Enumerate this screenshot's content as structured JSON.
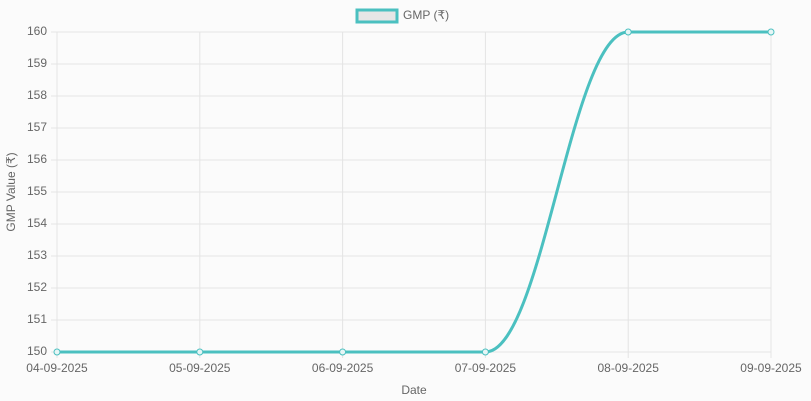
{
  "chart_data": {
    "type": "line",
    "x_label": "Date",
    "y_label": "GMP Value (₹)",
    "categories": [
      "04-09-2025",
      "05-09-2025",
      "06-09-2025",
      "07-09-2025",
      "08-09-2025",
      "09-09-2025"
    ],
    "series": [
      {
        "name": "GMP (₹)",
        "color": "#4bc0c0",
        "values": [
          150,
          150,
          150,
          150,
          160,
          160
        ]
      }
    ],
    "ylim": [
      150,
      160
    ],
    "yticks": [
      150,
      151,
      152,
      153,
      154,
      155,
      156,
      157,
      158,
      159,
      160
    ],
    "grid": true,
    "legend": "top"
  }
}
